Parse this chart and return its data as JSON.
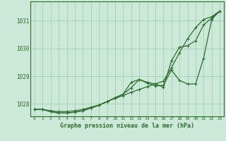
{
  "title": "Graphe pression niveau de la mer (hPa)",
  "bg_color": "#cce8d8",
  "grid_color": "#99ccaa",
  "line_color": "#2d6e2d",
  "xlim": [
    -0.5,
    23.5
  ],
  "ylim": [
    1027.55,
    1031.7
  ],
  "yticks": [
    1028,
    1029,
    1030,
    1031
  ],
  "xticks": [
    0,
    1,
    2,
    3,
    4,
    5,
    6,
    7,
    8,
    9,
    10,
    11,
    12,
    13,
    14,
    15,
    16,
    17,
    18,
    19,
    20,
    21,
    22,
    23
  ],
  "hours": [
    0,
    1,
    2,
    3,
    4,
    5,
    6,
    7,
    8,
    9,
    10,
    11,
    12,
    13,
    14,
    15,
    16,
    17,
    18,
    19,
    20,
    21,
    22,
    23
  ],
  "line1": [
    1027.8,
    1027.8,
    1027.75,
    1027.72,
    1027.72,
    1027.75,
    1027.8,
    1027.88,
    1027.96,
    1028.08,
    1028.2,
    1028.3,
    1028.42,
    1028.52,
    1028.62,
    1028.72,
    1028.82,
    1029.3,
    1029.85,
    1030.35,
    1030.75,
    1031.05,
    1031.15,
    1031.35
  ],
  "line2": [
    1027.8,
    1027.8,
    1027.72,
    1027.67,
    1027.67,
    1027.7,
    1027.75,
    1027.85,
    1027.95,
    1028.08,
    1028.22,
    1028.35,
    1028.78,
    1028.88,
    1028.78,
    1028.72,
    1028.6,
    1029.55,
    1030.05,
    1030.1,
    1030.28,
    1030.85,
    1031.1,
    1031.35
  ],
  "line3": [
    1027.8,
    1027.8,
    1027.72,
    1027.67,
    1027.67,
    1027.7,
    1027.75,
    1027.85,
    1027.95,
    1028.08,
    1028.22,
    1028.35,
    1028.58,
    1028.88,
    1028.75,
    1028.65,
    1028.67,
    1029.22,
    1028.85,
    1028.72,
    1028.72,
    1029.65,
    1031.05,
    1031.35
  ],
  "marker": "+"
}
